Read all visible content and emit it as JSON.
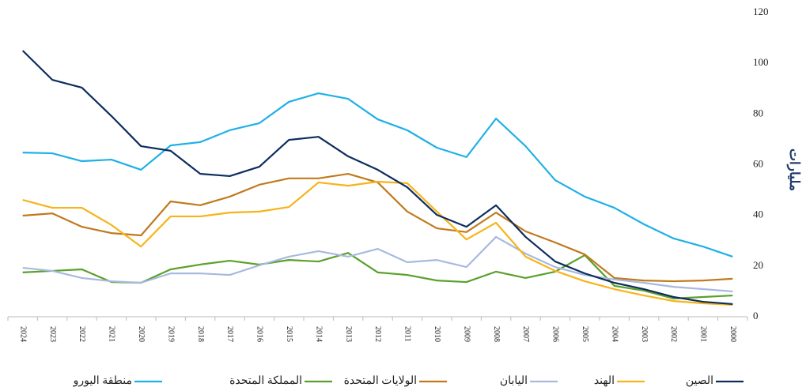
{
  "chart_data": {
    "type": "line",
    "y_label": "مليارات",
    "categories": [
      "2024",
      "2023",
      "2022",
      "2021",
      "2020",
      "2019",
      "2018",
      "2017",
      "2016",
      "2015",
      "2014",
      "2013",
      "2012",
      "2011",
      "2010",
      "2009",
      "2008",
      "2007",
      "2006",
      "2005",
      "2004",
      "2003",
      "2002",
      "2001",
      "2000"
    ],
    "ylim": [
      0,
      120
    ],
    "yticks": [
      0,
      20,
      40,
      60,
      80,
      100,
      120
    ],
    "grid": false,
    "y_axis_side": "right",
    "legend": "bottom",
    "series": [
      {
        "name": "الصين",
        "color": "#0d2d5e",
        "values": [
          105,
          93.5,
          90.4,
          79.2,
          67.3,
          65.5,
          56.4,
          55.5,
          59.2,
          69.8,
          71,
          63.3,
          58,
          51.1,
          40.2,
          35.5,
          44,
          31.5,
          21.8,
          17.1,
          13.4,
          10.9,
          7.8,
          5.9,
          5
        ]
      },
      {
        "name": "الهند",
        "color": "#f6b41a",
        "values": [
          46.1,
          43,
          43,
          36.2,
          27.7,
          39.6,
          39.6,
          41.1,
          41.5,
          43.3,
          53,
          51.7,
          53.3,
          52.7,
          41.5,
          30.5,
          37.1,
          23.7,
          18.1,
          14,
          10.9,
          8.4,
          6.2,
          5.3,
          4.7
        ]
      },
      {
        "name": "اليابان",
        "color": "#a8b9e0",
        "values": [
          19.3,
          18.1,
          15.3,
          14,
          13.4,
          17.1,
          17.1,
          16.5,
          20.3,
          23.7,
          25.9,
          23.7,
          26.8,
          21.5,
          22.4,
          19.6,
          31.5,
          24.9,
          19.6,
          16.5,
          14.7,
          13.4,
          11.8,
          10.9,
          10
        ]
      },
      {
        "name": "الولايات المتحدة",
        "color": "#c07a1d",
        "values": [
          39.9,
          40.8,
          35.5,
          33,
          32.1,
          45.5,
          44,
          47.4,
          52.1,
          54.6,
          54.6,
          56.4,
          53,
          41.5,
          34.9,
          33.4,
          41.1,
          33.7,
          29.3,
          24.6,
          15.3,
          14.3,
          14,
          14.3,
          15
        ]
      },
      {
        "name": "المملكة المتحدة",
        "color": "#5aa02c",
        "values": [
          17.5,
          18.1,
          18.7,
          13.7,
          13.4,
          18.7,
          20.6,
          22.1,
          20.6,
          22.4,
          21.8,
          25.2,
          17.5,
          16.5,
          14.3,
          13.7,
          17.8,
          15.3,
          17.8,
          24.3,
          12.2,
          10.3,
          7.2,
          7.8,
          8.4
        ]
      },
      {
        "name": "منطقة اليورو",
        "color": "#1fb0e6",
        "values": [
          64.8,
          64.5,
          61.4,
          62,
          58,
          67.6,
          68.9,
          73.6,
          76.4,
          84.8,
          88.2,
          86,
          77.9,
          73.6,
          66.7,
          63,
          78.2,
          67.3,
          53.9,
          47.4,
          43,
          36.5,
          30.9,
          27.7,
          23.7
        ]
      }
    ]
  }
}
